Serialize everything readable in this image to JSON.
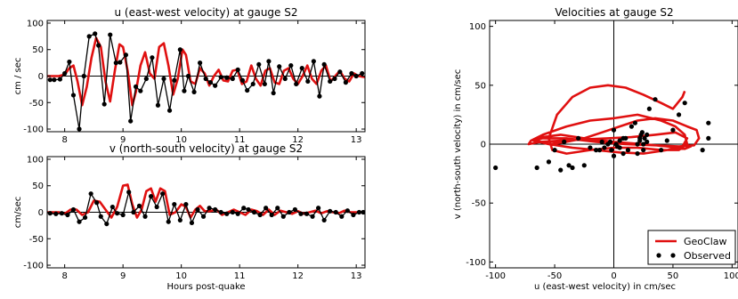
{
  "chart_data": [
    {
      "id": "u",
      "type": "line",
      "title": "u (east-west velocity) at gauge S2",
      "xlabel": "",
      "ylabel": "cm / sec",
      "xlim": [
        7.7,
        13.15
      ],
      "ylim": [
        -105,
        105
      ],
      "xticks": [
        8,
        9,
        10,
        11,
        12,
        13
      ],
      "yticks": [
        -100,
        -50,
        0,
        50,
        100
      ],
      "grid": false,
      "series": [
        {
          "name": "",
          "color": "#e01010",
          "x": [
            7.7,
            7.9,
            8.0,
            8.08,
            8.15,
            8.22,
            8.3,
            8.38,
            8.46,
            8.54,
            8.62,
            8.7,
            8.78,
            8.86,
            8.94,
            9.0,
            9.08,
            9.16,
            9.22,
            9.3,
            9.38,
            9.46,
            9.54,
            9.62,
            9.7,
            9.78,
            9.86,
            9.94,
            10.02,
            10.08,
            10.16,
            10.24,
            10.32,
            10.4,
            10.48,
            10.56,
            10.64,
            10.72,
            10.8,
            10.88,
            10.96,
            11.04,
            11.12,
            11.2,
            11.28,
            11.36,
            11.44,
            11.52,
            11.6,
            11.68,
            11.76,
            11.84,
            11.92,
            12.0,
            12.08,
            12.16,
            12.24,
            12.32,
            12.4,
            12.48,
            12.56,
            12.64,
            12.72,
            12.8,
            12.88,
            12.96,
            13.04,
            13.15
          ],
          "y": [
            0,
            0,
            3,
            15,
            20,
            -10,
            -55,
            -20,
            35,
            72,
            55,
            -10,
            -48,
            10,
            60,
            55,
            10,
            -55,
            -30,
            20,
            45,
            5,
            -5,
            55,
            62,
            20,
            -35,
            -5,
            50,
            40,
            -10,
            -15,
            15,
            5,
            -18,
            0,
            12,
            -8,
            -10,
            10,
            12,
            -15,
            -10,
            20,
            -5,
            -18,
            10,
            15,
            -12,
            -15,
            10,
            15,
            -5,
            -15,
            0,
            20,
            -5,
            -15,
            10,
            20,
            -10,
            0,
            10,
            -5,
            -10,
            5,
            0,
            -2
          ]
        },
        {
          "name": "",
          "color": "#000000",
          "x": [
            7.75,
            7.82,
            7.92,
            8.0,
            8.08,
            8.15,
            8.25,
            8.33,
            8.42,
            8.52,
            8.58,
            8.68,
            8.78,
            8.88,
            8.95,
            9.05,
            9.13,
            9.22,
            9.3,
            9.4,
            9.5,
            9.6,
            9.7,
            9.8,
            9.88,
            9.98,
            10.05,
            10.12,
            10.22,
            10.32,
            10.42,
            10.5,
            10.58,
            10.68,
            10.78,
            10.88,
            10.97,
            11.05,
            11.13,
            11.23,
            11.33,
            11.43,
            11.5,
            11.58,
            11.68,
            11.78,
            11.88,
            11.97,
            12.07,
            12.17,
            12.27,
            12.37,
            12.45,
            12.55,
            12.63,
            12.72,
            12.82,
            12.92,
            13.0,
            13.1
          ],
          "y": [
            -7,
            -7,
            -6,
            5,
            27,
            -36,
            -100,
            0,
            75,
            80,
            58,
            -53,
            78,
            25,
            26,
            40,
            -85,
            -20,
            -28,
            -5,
            35,
            -55,
            -5,
            -65,
            -8,
            50,
            -28,
            0,
            -30,
            25,
            -5,
            -12,
            -18,
            -2,
            -3,
            -5,
            12,
            -8,
            -27,
            -15,
            22,
            -15,
            28,
            -32,
            18,
            -5,
            20,
            -15,
            15,
            -10,
            28,
            -38,
            22,
            -10,
            -5,
            8,
            -12,
            5,
            0,
            5
          ]
        }
      ]
    },
    {
      "id": "v",
      "type": "line",
      "title": "v (north-south velocity) at gauge S2",
      "xlabel": "Hours post-quake",
      "ylabel": "cm/sec",
      "xlim": [
        7.7,
        13.15
      ],
      "ylim": [
        -105,
        105
      ],
      "xticks": [
        8,
        9,
        10,
        11,
        12,
        13
      ],
      "yticks": [
        -100,
        -50,
        0,
        50,
        100
      ],
      "grid": false,
      "series": [
        {
          "name": "",
          "color": "#e01010",
          "x": [
            7.7,
            7.9,
            8.0,
            8.1,
            8.2,
            8.3,
            8.4,
            8.5,
            8.6,
            8.7,
            8.8,
            8.9,
            9.0,
            9.08,
            9.16,
            9.24,
            9.32,
            9.4,
            9.48,
            9.56,
            9.64,
            9.72,
            9.8,
            9.9,
            10.0,
            10.08,
            10.16,
            10.24,
            10.32,
            10.4,
            10.5,
            10.6,
            10.7,
            10.8,
            10.9,
            11.0,
            11.1,
            11.2,
            11.3,
            11.4,
            11.5,
            11.6,
            11.7,
            11.8,
            11.9,
            12.0,
            12.1,
            12.2,
            12.3,
            12.4,
            12.5,
            12.6,
            12.7,
            12.8,
            12.9,
            13.0,
            13.15
          ],
          "y": [
            0,
            0,
            -3,
            5,
            5,
            -5,
            0,
            22,
            20,
            5,
            -10,
            10,
            50,
            52,
            15,
            -10,
            5,
            40,
            45,
            20,
            45,
            40,
            -5,
            0,
            15,
            10,
            -10,
            5,
            12,
            2,
            2,
            5,
            -5,
            0,
            5,
            0,
            -5,
            5,
            2,
            -5,
            5,
            -5,
            3,
            0,
            -3,
            2,
            -3,
            0,
            3,
            -2,
            2,
            0,
            -2,
            3,
            0,
            0,
            0
          ]
        },
        {
          "name": "",
          "color": "#000000",
          "x": [
            7.75,
            7.85,
            7.95,
            8.05,
            8.15,
            8.25,
            8.35,
            8.45,
            8.55,
            8.62,
            8.72,
            8.82,
            8.9,
            9.0,
            9.1,
            9.18,
            9.28,
            9.38,
            9.48,
            9.58,
            9.68,
            9.78,
            9.88,
            9.98,
            10.08,
            10.18,
            10.28,
            10.38,
            10.48,
            10.58,
            10.68,
            10.78,
            10.88,
            10.97,
            11.07,
            11.15,
            11.25,
            11.35,
            11.45,
            11.55,
            11.65,
            11.75,
            11.85,
            11.95,
            12.05,
            12.15,
            12.25,
            12.35,
            12.45,
            12.55,
            12.65,
            12.75,
            12.85,
            12.95,
            13.05,
            13.12
          ],
          "y": [
            -2,
            -3,
            -2,
            -5,
            5,
            -18,
            -10,
            35,
            18,
            -8,
            -22,
            10,
            -2,
            -5,
            38,
            0,
            12,
            -8,
            30,
            10,
            35,
            -18,
            15,
            -15,
            15,
            -20,
            5,
            -8,
            8,
            5,
            0,
            -3,
            0,
            -3,
            8,
            5,
            0,
            -5,
            8,
            -5,
            8,
            -8,
            0,
            5,
            -3,
            -3,
            -8,
            8,
            -15,
            2,
            0,
            -8,
            3,
            -5,
            0,
            0
          ]
        }
      ]
    },
    {
      "id": "phase",
      "type": "scatter",
      "title": "Velocities at gauge S2",
      "xlabel": "u (east-west velocity) in cm/sec",
      "ylabel": "v (north-south velocity) in cm/sec",
      "xlim": [
        -105,
        105
      ],
      "ylim": [
        -105,
        105
      ],
      "xticks": [
        -100,
        -50,
        0,
        50,
        100
      ],
      "yticks": [
        -100,
        -50,
        0,
        50,
        100
      ],
      "grid": false,
      "legend_position": "bottom-right",
      "series": [
        {
          "name": "GeoClaw",
          "type": "line",
          "color": "#e01010",
          "x": [
            60,
            58,
            50,
            40,
            25,
            10,
            -5,
            -20,
            -35,
            -48,
            -55,
            -52,
            -40,
            -20,
            0,
            20,
            40,
            55,
            62,
            60,
            52,
            40,
            20,
            0,
            -20,
            -40,
            -60,
            -70,
            -72,
            -62,
            -45,
            -25,
            -5,
            15,
            35,
            52,
            62,
            58,
            45,
            25,
            5,
            -15,
            -35,
            -55,
            -68,
            -60,
            -40,
            -15,
            10,
            35,
            55,
            68,
            72,
            70,
            62,
            50,
            35,
            20,
            5,
            -10,
            -25,
            -40,
            -55,
            -65,
            -60,
            -45,
            -25,
            0,
            25,
            45,
            60,
            65,
            60
          ],
          "y": [
            45,
            40,
            30,
            35,
            42,
            48,
            50,
            48,
            40,
            25,
            5,
            -5,
            -8,
            -5,
            -3,
            -3,
            -5,
            -5,
            0,
            8,
            15,
            20,
            25,
            22,
            20,
            15,
            8,
            3,
            0,
            2,
            3,
            4,
            5,
            6,
            8,
            10,
            5,
            -2,
            -5,
            -8,
            -7,
            -5,
            -3,
            0,
            3,
            5,
            5,
            2,
            0,
            -1,
            -2,
            -1,
            5,
            12,
            15,
            20,
            22,
            20,
            15,
            10,
            5,
            2,
            0,
            3,
            6,
            8,
            5,
            2,
            0,
            -2,
            -4,
            -2,
            0
          ]
        },
        {
          "name": "Observed",
          "type": "scatter",
          "color": "#000000",
          "x": [
            -100,
            -65,
            -55,
            -50,
            -45,
            -42,
            -38,
            -35,
            -30,
            -25,
            -20,
            -15,
            -12,
            -10,
            -8,
            -5,
            -3,
            -2,
            0,
            0,
            2,
            3,
            5,
            5,
            8,
            8,
            10,
            12,
            15,
            18,
            20,
            20,
            22,
            22,
            23,
            24,
            25,
            25,
            26,
            28,
            28,
            30,
            35,
            40,
            45,
            50,
            55,
            60,
            75,
            80,
            80
          ],
          "y": [
            -20,
            -20,
            -15,
            -5,
            -22,
            2,
            -18,
            -20,
            5,
            -18,
            -3,
            -5,
            -5,
            2,
            -3,
            0,
            2,
            -5,
            -10,
            12,
            0,
            -2,
            -3,
            3,
            5,
            -8,
            5,
            -5,
            15,
            18,
            -8,
            0,
            3,
            5,
            8,
            10,
            0,
            -5,
            5,
            2,
            8,
            30,
            38,
            -5,
            3,
            12,
            25,
            35,
            -5,
            5,
            18
          ]
        }
      ]
    }
  ]
}
